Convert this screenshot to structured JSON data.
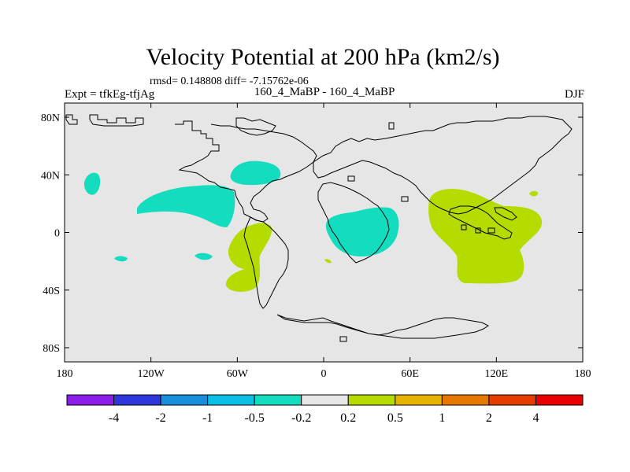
{
  "header": {
    "title": "Velocity Potential at 200 hPa (km2/s)",
    "stats": "rmsd= 0.148808 diff= -7.15762e-06",
    "left_label": "Expt = tfkEg-tfjAg",
    "center_label": "160_4_MaBP - 160_4_MaBP",
    "right_label": "DJF"
  },
  "map": {
    "x_ticks": [
      "180",
      "120W",
      "60W",
      "0",
      "60E",
      "120E",
      "180"
    ],
    "y_ticks": [
      "80N",
      "40N",
      "0",
      "40S",
      "80S"
    ],
    "background_color": "#e6e6e6"
  },
  "colorbar": {
    "colors": [
      "#8a1ee8",
      "#2d37dc",
      "#1a8cdc",
      "#0ac0e6",
      "#14dcbe",
      "#e6e6e6",
      "#b4dc00",
      "#e6b400",
      "#e67800",
      "#e63c00",
      "#e60000"
    ],
    "labels": [
      "-4",
      "-2",
      "-1",
      "-0.5",
      "-0.2",
      "0.2",
      "0.5",
      "1",
      "2",
      "4"
    ]
  }
}
